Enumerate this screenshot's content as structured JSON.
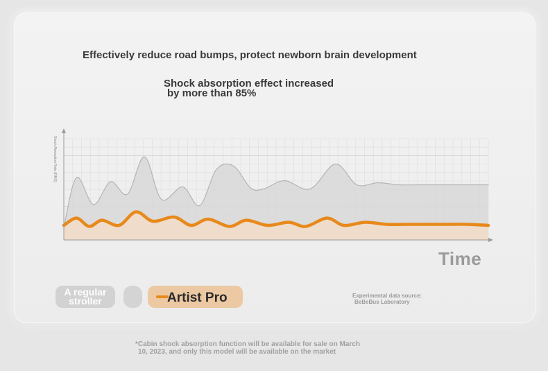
{
  "headline": "Effectively reduce road bumps, protect newborn brain development",
  "subhead": {
    "line1": "Shock absorption effect increased",
    "line2": "by more than 85%"
  },
  "colors": {
    "regular_line": "#b4b4b4",
    "regular_fill": "#d8d8d8",
    "pro_line": "#e8891c",
    "pro_fill": "#f2dcc8"
  },
  "chart_data": {
    "type": "area",
    "xlabel": "Time",
    "ylabel": "Shock Absorption Rate (RMS)",
    "grid": true,
    "ylim": [
      0,
      1
    ],
    "series": [
      {
        "name": "A regular stroller",
        "x": [
          0,
          0.03,
          0.07,
          0.11,
          0.15,
          0.19,
          0.23,
          0.28,
          0.32,
          0.36,
          0.4,
          0.44,
          0.47,
          0.52,
          0.58,
          0.64,
          0.69,
          0.74,
          0.79,
          0.84,
          0.88,
          0.93,
          1.0
        ],
        "values": [
          0.12,
          0.6,
          0.34,
          0.56,
          0.44,
          0.8,
          0.39,
          0.51,
          0.33,
          0.68,
          0.71,
          0.5,
          0.49,
          0.57,
          0.49,
          0.73,
          0.53,
          0.55,
          0.53,
          0.53,
          0.53,
          0.53,
          0.53
        ]
      },
      {
        "name": "Artist Pro",
        "x": [
          0,
          0.03,
          0.06,
          0.09,
          0.13,
          0.17,
          0.21,
          0.26,
          0.3,
          0.34,
          0.39,
          0.43,
          0.48,
          0.53,
          0.57,
          0.62,
          0.66,
          0.71,
          0.76,
          0.81,
          0.86,
          0.9,
          0.95,
          1.0
        ],
        "values": [
          0.14,
          0.21,
          0.13,
          0.19,
          0.14,
          0.27,
          0.18,
          0.22,
          0.14,
          0.2,
          0.13,
          0.19,
          0.14,
          0.17,
          0.13,
          0.21,
          0.14,
          0.17,
          0.15,
          0.15,
          0.15,
          0.15,
          0.15,
          0.14
        ]
      }
    ]
  },
  "legend": {
    "regular_label_line1": "A regular",
    "regular_label_line2": "stroller",
    "pro_label": "Artist Pro"
  },
  "source": {
    "line1": "Experimental data source:",
    "line2": "BeBeBus Laboratory"
  },
  "footnote": {
    "line1": "*Cabin shock absorption function will be available for sale on March",
    "line2": "10, 2023, and only this model will be available on the market"
  }
}
